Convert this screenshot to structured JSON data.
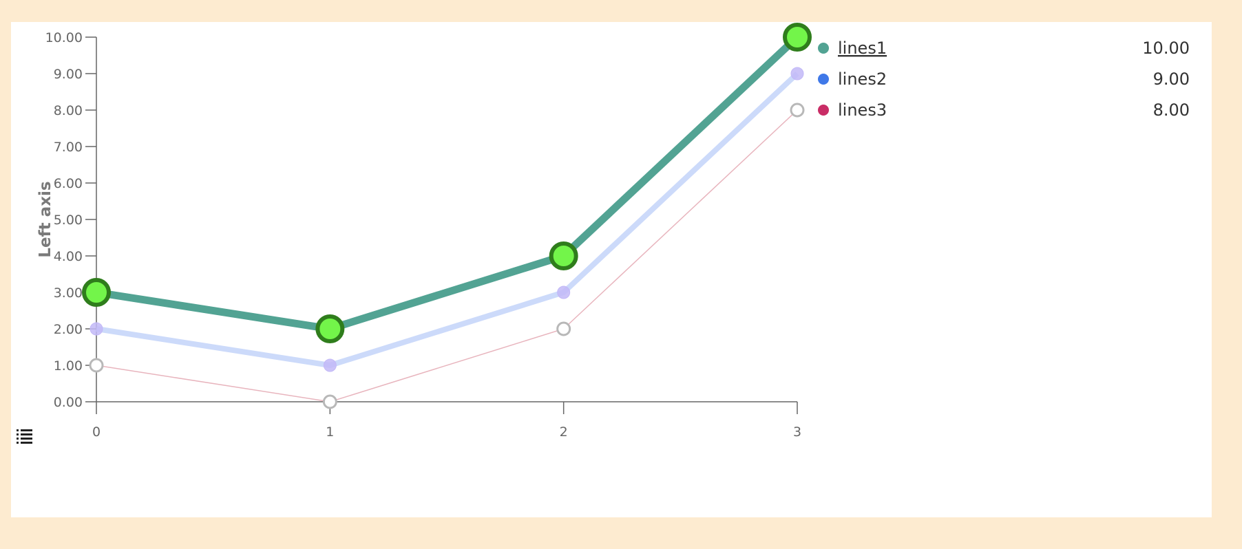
{
  "chart_data": {
    "type": "line",
    "ylabel": "Left axis",
    "xlabel": "",
    "title": "",
    "x": [
      0,
      1,
      2,
      3
    ],
    "x_tick_labels": [
      "0",
      "1",
      "2",
      "3"
    ],
    "ylim": [
      0,
      10
    ],
    "y_ticks": [
      0,
      1,
      2,
      3,
      4,
      5,
      6,
      7,
      8,
      9,
      10
    ],
    "y_tick_format_decimals": 2,
    "legend_position": "right",
    "highlighted_series": "lines1",
    "series": [
      {
        "name": "lines1",
        "values": [
          3,
          2,
          4,
          10
        ],
        "color": "#52a393",
        "legend_color": "#52a393",
        "marker_fill": "#73f54a",
        "marker_stroke": "#2f7d1c",
        "legend_value": "10.00"
      },
      {
        "name": "lines2",
        "values": [
          2,
          1,
          3,
          9
        ],
        "color": "#ccdafa",
        "legend_color": "#3f78e8",
        "marker_fill": "#c2b8f7",
        "marker_stroke": "#c2b8f7",
        "legend_value": "9.00"
      },
      {
        "name": "lines3",
        "values": [
          1,
          0,
          2,
          8
        ],
        "color": "#e8b4bd",
        "legend_color": "#c92d66",
        "marker_fill": "#ffffff",
        "marker_stroke": "#b8b8b8",
        "legend_value": "8.00"
      }
    ]
  },
  "icons": {
    "legend_toggle": "list-icon"
  }
}
